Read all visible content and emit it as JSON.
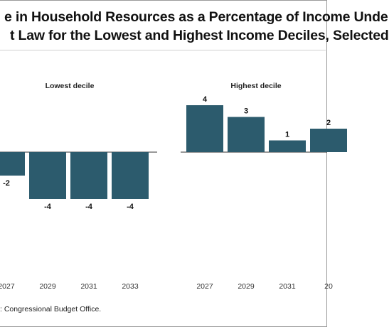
{
  "title_line1": "e in Household Resources as a Percentage of Income Unde",
  "title_line2": "t Law for the Lowest and Highest Income Deciles, Selected",
  "source": ": Congressional Budget Office.",
  "colors": {
    "bar": "#2c5b6d",
    "axis": "#333333"
  },
  "chart_data": [
    {
      "type": "bar",
      "title": "Lowest decile",
      "categories": [
        "2027",
        "2029",
        "2031",
        "2033"
      ],
      "values": [
        -2,
        -4,
        -4,
        -4
      ],
      "value_labels": [
        "-2",
        "-4",
        "-4",
        "-4"
      ],
      "ylim": [
        -6,
        5
      ],
      "grid": false
    },
    {
      "type": "bar",
      "title": "Highest decile",
      "categories": [
        "2027",
        "2029",
        "2031",
        "20"
      ],
      "values": [
        4,
        3,
        1,
        2
      ],
      "value_labels": [
        "4",
        "3",
        "1",
        "2"
      ],
      "ylim": [
        -6,
        5
      ],
      "grid": false
    }
  ]
}
